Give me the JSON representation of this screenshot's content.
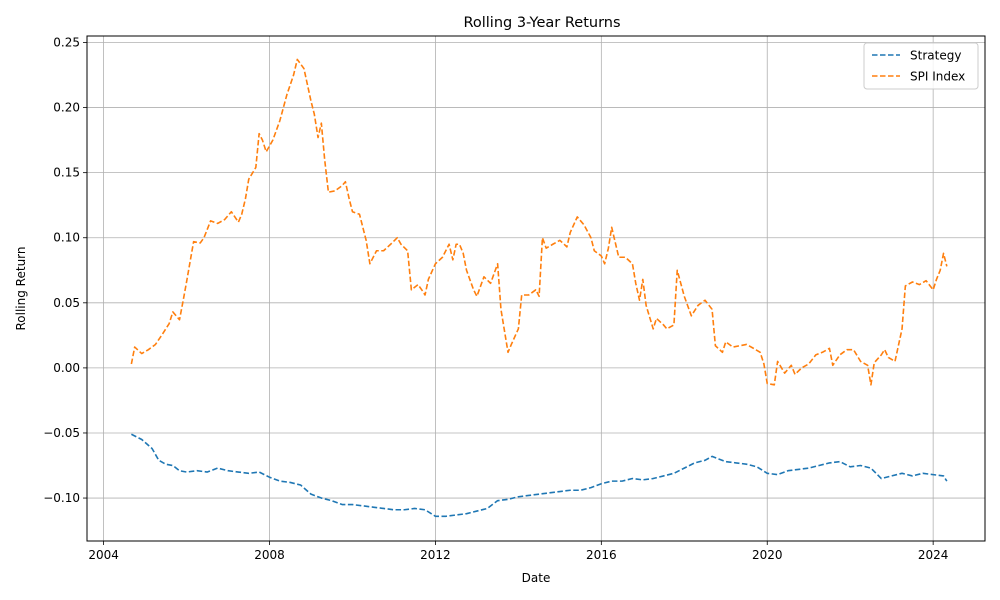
{
  "chart_data": {
    "type": "line",
    "title": "Rolling 3-Year Returns",
    "xlabel": "Date",
    "ylabel": "Rolling Return",
    "xlim": [
      2003.6,
      2025.25
    ],
    "ylim": [
      -0.133,
      0.255
    ],
    "x_ticks": [
      2004,
      2008,
      2012,
      2016,
      2020,
      2024
    ],
    "y_ticks": [
      -0.1,
      -0.05,
      0.0,
      0.05,
      0.1,
      0.15,
      0.2,
      0.25
    ],
    "y_tick_labels": [
      "−0.10",
      "−0.05",
      "0.00",
      "0.05",
      "0.10",
      "0.15",
      "0.20",
      "0.25"
    ],
    "grid": true,
    "legend_position": "top-right",
    "series": [
      {
        "name": "Strategy",
        "color": "#1f77b4",
        "style": "dashed",
        "points": [
          [
            2004.67,
            -0.051
          ],
          [
            2004.92,
            -0.055
          ],
          [
            2005.17,
            -0.062
          ],
          [
            2005.33,
            -0.071
          ],
          [
            2005.5,
            -0.074
          ],
          [
            2005.67,
            -0.075
          ],
          [
            2005.83,
            -0.079
          ],
          [
            2006.0,
            -0.08
          ],
          [
            2006.25,
            -0.079
          ],
          [
            2006.5,
            -0.08
          ],
          [
            2006.75,
            -0.077
          ],
          [
            2007.0,
            -0.079
          ],
          [
            2007.25,
            -0.08
          ],
          [
            2007.5,
            -0.081
          ],
          [
            2007.75,
            -0.08
          ],
          [
            2008.0,
            -0.084
          ],
          [
            2008.25,
            -0.087
          ],
          [
            2008.5,
            -0.088
          ],
          [
            2008.75,
            -0.09
          ],
          [
            2009.0,
            -0.097
          ],
          [
            2009.25,
            -0.1
          ],
          [
            2009.5,
            -0.102
          ],
          [
            2009.75,
            -0.105
          ],
          [
            2010.0,
            -0.105
          ],
          [
            2010.25,
            -0.106
          ],
          [
            2010.5,
            -0.107
          ],
          [
            2010.75,
            -0.108
          ],
          [
            2011.0,
            -0.109
          ],
          [
            2011.25,
            -0.109
          ],
          [
            2011.5,
            -0.108
          ],
          [
            2011.75,
            -0.109
          ],
          [
            2012.0,
            -0.114
          ],
          [
            2012.25,
            -0.114
          ],
          [
            2012.5,
            -0.113
          ],
          [
            2012.75,
            -0.112
          ],
          [
            2013.0,
            -0.11
          ],
          [
            2013.25,
            -0.108
          ],
          [
            2013.5,
            -0.102
          ],
          [
            2013.75,
            -0.101
          ],
          [
            2014.0,
            -0.099
          ],
          [
            2014.25,
            -0.098
          ],
          [
            2014.5,
            -0.097
          ],
          [
            2014.75,
            -0.096
          ],
          [
            2015.0,
            -0.095
          ],
          [
            2015.25,
            -0.094
          ],
          [
            2015.5,
            -0.094
          ],
          [
            2015.75,
            -0.092
          ],
          [
            2016.0,
            -0.089
          ],
          [
            2016.25,
            -0.087
          ],
          [
            2016.5,
            -0.087
          ],
          [
            2016.75,
            -0.085
          ],
          [
            2017.0,
            -0.086
          ],
          [
            2017.25,
            -0.085
          ],
          [
            2017.5,
            -0.083
          ],
          [
            2017.75,
            -0.081
          ],
          [
            2018.0,
            -0.077
          ],
          [
            2018.25,
            -0.073
          ],
          [
            2018.5,
            -0.071
          ],
          [
            2018.67,
            -0.068
          ],
          [
            2018.83,
            -0.07
          ],
          [
            2019.0,
            -0.072
          ],
          [
            2019.25,
            -0.073
          ],
          [
            2019.5,
            -0.074
          ],
          [
            2019.75,
            -0.076
          ],
          [
            2020.0,
            -0.081
          ],
          [
            2020.25,
            -0.082
          ],
          [
            2020.5,
            -0.079
          ],
          [
            2020.75,
            -0.078
          ],
          [
            2021.0,
            -0.077
          ],
          [
            2021.25,
            -0.075
          ],
          [
            2021.5,
            -0.073
          ],
          [
            2021.75,
            -0.072
          ],
          [
            2022.0,
            -0.076
          ],
          [
            2022.25,
            -0.075
          ],
          [
            2022.5,
            -0.077
          ],
          [
            2022.75,
            -0.085
          ],
          [
            2023.0,
            -0.083
          ],
          [
            2023.25,
            -0.081
          ],
          [
            2023.5,
            -0.083
          ],
          [
            2023.75,
            -0.081
          ],
          [
            2024.0,
            -0.082
          ],
          [
            2024.25,
            -0.083
          ],
          [
            2024.33,
            -0.087
          ]
        ]
      },
      {
        "name": "SPI Index",
        "color": "#ff7f0e",
        "style": "dashed",
        "points": [
          [
            2004.67,
            0.003
          ],
          [
            2004.75,
            0.016
          ],
          [
            2004.92,
            0.011
          ],
          [
            2005.08,
            0.014
          ],
          [
            2005.25,
            0.018
          ],
          [
            2005.42,
            0.026
          ],
          [
            2005.58,
            0.034
          ],
          [
            2005.67,
            0.043
          ],
          [
            2005.83,
            0.037
          ],
          [
            2005.92,
            0.052
          ],
          [
            2006.0,
            0.066
          ],
          [
            2006.17,
            0.097
          ],
          [
            2006.33,
            0.096
          ],
          [
            2006.42,
            0.1
          ],
          [
            2006.58,
            0.113
          ],
          [
            2006.75,
            0.111
          ],
          [
            2006.92,
            0.114
          ],
          [
            2007.08,
            0.12
          ],
          [
            2007.25,
            0.112
          ],
          [
            2007.33,
            0.118
          ],
          [
            2007.42,
            0.13
          ],
          [
            2007.5,
            0.145
          ],
          [
            2007.67,
            0.154
          ],
          [
            2007.75,
            0.18
          ],
          [
            2007.83,
            0.175
          ],
          [
            2007.92,
            0.166
          ],
          [
            2008.08,
            0.175
          ],
          [
            2008.25,
            0.19
          ],
          [
            2008.42,
            0.21
          ],
          [
            2008.58,
            0.225
          ],
          [
            2008.67,
            0.237
          ],
          [
            2008.83,
            0.23
          ],
          [
            2009.0,
            0.205
          ],
          [
            2009.08,
            0.195
          ],
          [
            2009.17,
            0.177
          ],
          [
            2009.25,
            0.188
          ],
          [
            2009.33,
            0.16
          ],
          [
            2009.42,
            0.135
          ],
          [
            2009.58,
            0.136
          ],
          [
            2009.75,
            0.14
          ],
          [
            2009.83,
            0.143
          ],
          [
            2009.92,
            0.13
          ],
          [
            2010.0,
            0.12
          ],
          [
            2010.17,
            0.118
          ],
          [
            2010.33,
            0.098
          ],
          [
            2010.42,
            0.08
          ],
          [
            2010.58,
            0.09
          ],
          [
            2010.75,
            0.09
          ],
          [
            2010.92,
            0.095
          ],
          [
            2011.08,
            0.1
          ],
          [
            2011.17,
            0.095
          ],
          [
            2011.33,
            0.09
          ],
          [
            2011.42,
            0.06
          ],
          [
            2011.58,
            0.064
          ],
          [
            2011.67,
            0.06
          ],
          [
            2011.75,
            0.056
          ],
          [
            2011.83,
            0.068
          ],
          [
            2012.0,
            0.08
          ],
          [
            2012.17,
            0.085
          ],
          [
            2012.33,
            0.095
          ],
          [
            2012.42,
            0.083
          ],
          [
            2012.5,
            0.095
          ],
          [
            2012.58,
            0.095
          ],
          [
            2012.67,
            0.088
          ],
          [
            2012.75,
            0.075
          ],
          [
            2012.92,
            0.06
          ],
          [
            2013.0,
            0.055
          ],
          [
            2013.17,
            0.07
          ],
          [
            2013.33,
            0.065
          ],
          [
            2013.5,
            0.08
          ],
          [
            2013.58,
            0.045
          ],
          [
            2013.75,
            0.012
          ],
          [
            2013.83,
            0.018
          ],
          [
            2014.0,
            0.03
          ],
          [
            2014.08,
            0.056
          ],
          [
            2014.25,
            0.056
          ],
          [
            2014.42,
            0.06
          ],
          [
            2014.5,
            0.055
          ],
          [
            2014.58,
            0.1
          ],
          [
            2014.67,
            0.092
          ],
          [
            2014.83,
            0.095
          ],
          [
            2015.0,
            0.098
          ],
          [
            2015.17,
            0.093
          ],
          [
            2015.25,
            0.104
          ],
          [
            2015.42,
            0.116
          ],
          [
            2015.58,
            0.11
          ],
          [
            2015.75,
            0.1
          ],
          [
            2015.83,
            0.09
          ],
          [
            2016.0,
            0.086
          ],
          [
            2016.08,
            0.08
          ],
          [
            2016.17,
            0.092
          ],
          [
            2016.25,
            0.108
          ],
          [
            2016.42,
            0.085
          ],
          [
            2016.58,
            0.085
          ],
          [
            2016.75,
            0.08
          ],
          [
            2016.83,
            0.065
          ],
          [
            2016.92,
            0.052
          ],
          [
            2017.0,
            0.068
          ],
          [
            2017.08,
            0.048
          ],
          [
            2017.25,
            0.03
          ],
          [
            2017.33,
            0.038
          ],
          [
            2017.5,
            0.033
          ],
          [
            2017.58,
            0.03
          ],
          [
            2017.75,
            0.033
          ],
          [
            2017.83,
            0.075
          ],
          [
            2018.0,
            0.055
          ],
          [
            2018.17,
            0.04
          ],
          [
            2018.33,
            0.048
          ],
          [
            2018.5,
            0.052
          ],
          [
            2018.67,
            0.045
          ],
          [
            2018.75,
            0.017
          ],
          [
            2018.92,
            0.012
          ],
          [
            2019.0,
            0.02
          ],
          [
            2019.17,
            0.016
          ],
          [
            2019.33,
            0.017
          ],
          [
            2019.5,
            0.018
          ],
          [
            2019.67,
            0.015
          ],
          [
            2019.83,
            0.012
          ],
          [
            2019.92,
            0.003
          ],
          [
            2020.0,
            -0.012
          ],
          [
            2020.17,
            -0.013
          ],
          [
            2020.25,
            0.005
          ],
          [
            2020.42,
            -0.004
          ],
          [
            2020.58,
            0.002
          ],
          [
            2020.67,
            -0.005
          ],
          [
            2020.83,
            0.0
          ],
          [
            2021.0,
            0.003
          ],
          [
            2021.17,
            0.01
          ],
          [
            2021.33,
            0.012
          ],
          [
            2021.5,
            0.015
          ],
          [
            2021.58,
            0.002
          ],
          [
            2021.75,
            0.01
          ],
          [
            2021.92,
            0.014
          ],
          [
            2022.08,
            0.014
          ],
          [
            2022.25,
            0.005
          ],
          [
            2022.42,
            0.002
          ],
          [
            2022.5,
            -0.013
          ],
          [
            2022.58,
            0.004
          ],
          [
            2022.75,
            0.01
          ],
          [
            2022.83,
            0.014
          ],
          [
            2022.92,
            0.008
          ],
          [
            2023.08,
            0.005
          ],
          [
            2023.25,
            0.03
          ],
          [
            2023.33,
            0.063
          ],
          [
            2023.5,
            0.066
          ],
          [
            2023.67,
            0.064
          ],
          [
            2023.83,
            0.067
          ],
          [
            2024.0,
            0.06
          ],
          [
            2024.08,
            0.068
          ],
          [
            2024.17,
            0.075
          ],
          [
            2024.25,
            0.088
          ],
          [
            2024.33,
            0.078
          ]
        ]
      }
    ]
  }
}
